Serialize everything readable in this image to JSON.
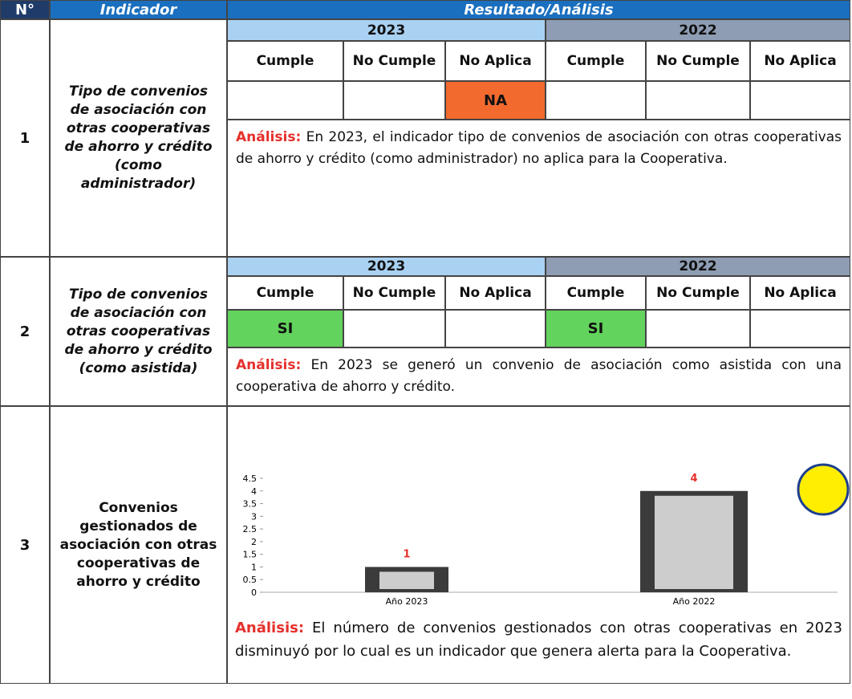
{
  "table": {
    "header": [
      "N°",
      "Indicador",
      "Resultado/Análisis"
    ],
    "rows": [
      {
        "number": "1",
        "indicator": "Tipo de convenios de asociación con otras cooperativas de ahorro y crédito (como administrador)",
        "years": [
          "2023",
          "2022"
        ],
        "columns": [
          "Cumple",
          "No Cumple",
          "No Aplica",
          "Cumple",
          "No Cumple",
          "No Aplica"
        ],
        "cells": [
          null,
          null,
          "NA",
          null,
          null,
          null
        ],
        "cell_colors": [
          null,
          null,
          "#f26a2e",
          null,
          null,
          null
        ],
        "analysis_label": "Análisis:",
        "analysis": "En 2023, el indicador tipo de convenios de asociación con otras cooperativas de ahorro y crédito (como administrador) no aplica para la Cooperativa."
      },
      {
        "number": "2",
        "indicator": "Tipo de convenios de asociación con otras cooperativas de ahorro y crédito (como asistida)",
        "years": [
          "2023",
          "2022"
        ],
        "columns": [
          "Cumple",
          "No Cumple",
          "No Aplica",
          "Cumple",
          "No Cumple",
          "No Aplica"
        ],
        "cells": [
          "SI",
          null,
          null,
          "SI",
          null,
          null
        ],
        "cell_colors": [
          "#62d35c",
          null,
          null,
          "#62d35c",
          null,
          null
        ],
        "analysis_label": "Análisis:",
        "analysis": "En 2023 se generó un convenio de asociación como asistida con una cooperativa de ahorro y crédito."
      },
      {
        "number": "3",
        "indicator": "Convenios gestionados de asociación con otras cooperativas de ahorro y crédito",
        "analysis_label": "Análisis:",
        "analysis": "El número de convenios gestionados con otras cooperativas en 2023 disminuyó por lo cual es un indicador que genera alerta para la Cooperativa."
      }
    ]
  },
  "chart_data": {
    "type": "bar",
    "categories": [
      "Año 2023",
      "Año 2022"
    ],
    "values": [
      1,
      4
    ],
    "color": "#3b3b3b",
    "label_color": "#e5302c",
    "ylim": [
      0,
      4.5
    ],
    "yticks": [
      0,
      0.5,
      1,
      1.5,
      2,
      2.5,
      3,
      3.5,
      4,
      4.5
    ]
  }
}
